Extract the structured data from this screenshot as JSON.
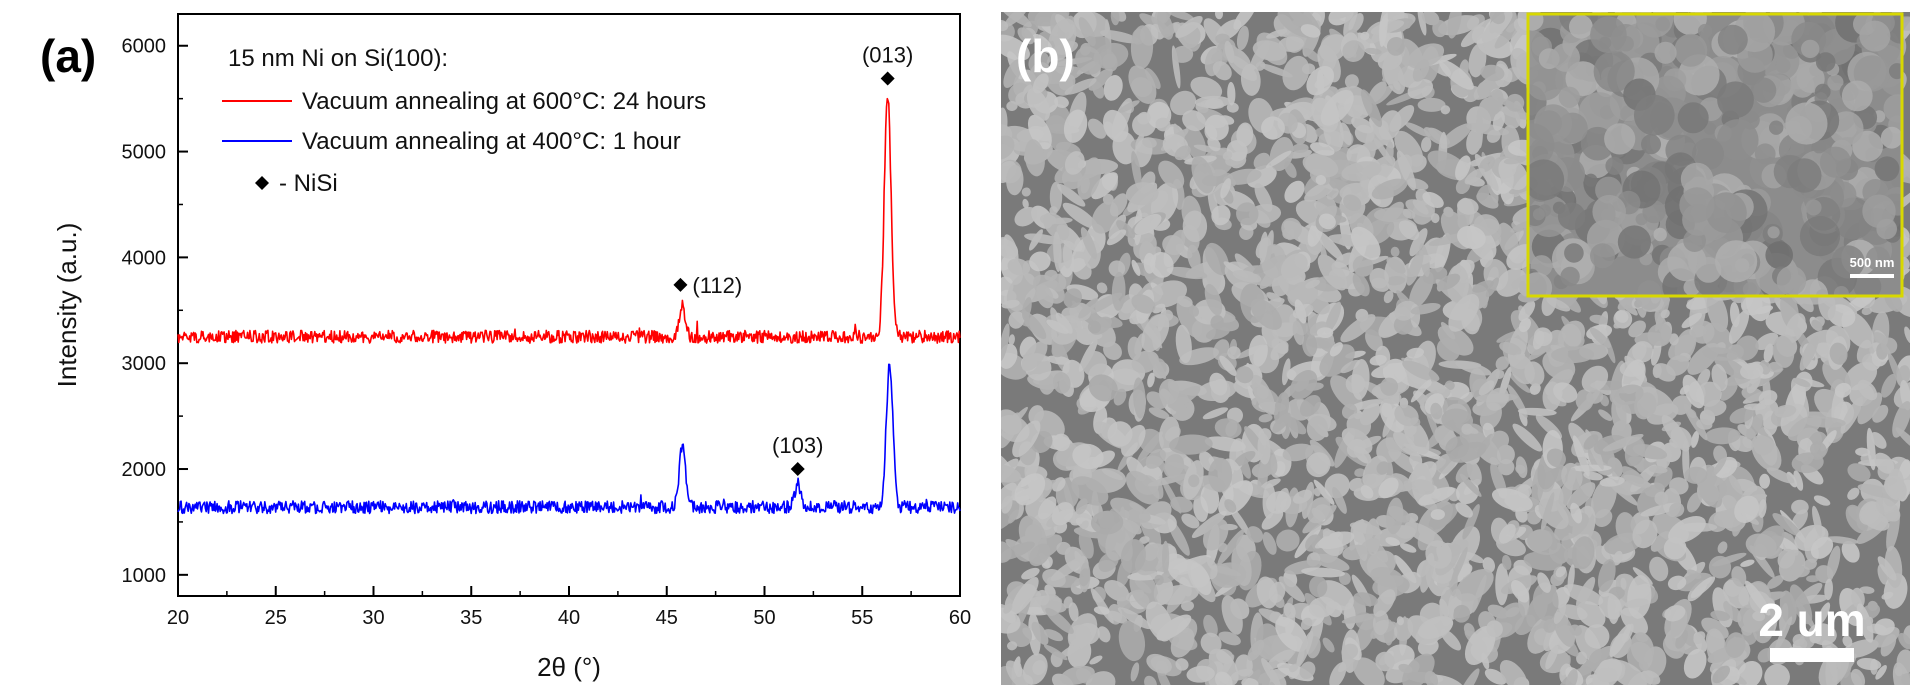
{
  "panel_a": {
    "label": "(a)",
    "legend_title": "15 nm Ni on Si(100):",
    "marker_legend": "- NiSi",
    "peak_labels": [
      {
        "text": "(013)",
        "x": 56.3,
        "y": 5690
      },
      {
        "text": "(112)",
        "x": 45.7,
        "y": 3740
      },
      {
        "text": "(103)",
        "x": 51.7,
        "y": 2000
      }
    ]
  },
  "panel_b": {
    "label": "(b)",
    "scale_bar_label": "2 um",
    "inset_scale_bar_label": "500 nm",
    "colors": {
      "inset_border": "#d8d800",
      "background": "#7a7a7a",
      "grains": "#b9b9b9"
    }
  },
  "chart_data": {
    "type": "line",
    "title": "",
    "xlabel": "2θ (°)",
    "ylabel": "Intensity (a.u.)",
    "xlim": [
      20,
      60
    ],
    "ylim": [
      800,
      6300
    ],
    "xticks": [
      20,
      25,
      30,
      35,
      40,
      45,
      50,
      55,
      60
    ],
    "yticks": [
      1000,
      2000,
      3000,
      4000,
      5000,
      6000
    ],
    "grid": false,
    "legend_position": "top-left",
    "series": [
      {
        "name": "Vacuum annealing at 600°C: 24 hours",
        "color": "#ff0000",
        "baseline": 3250,
        "noise": 60,
        "peaks": [
          {
            "x": 45.8,
            "height": 300,
            "width": 0.14
          },
          {
            "x": 56.3,
            "height": 2300,
            "width": 0.17
          }
        ]
      },
      {
        "name": "Vacuum annealing at 400°C:  1  hour",
        "color": "#0000ff",
        "baseline": 1640,
        "noise": 60,
        "peaks": [
          {
            "x": 45.8,
            "height": 600,
            "width": 0.16
          },
          {
            "x": 51.7,
            "height": 220,
            "width": 0.16
          },
          {
            "x": 56.4,
            "height": 1340,
            "width": 0.17
          }
        ]
      }
    ]
  }
}
